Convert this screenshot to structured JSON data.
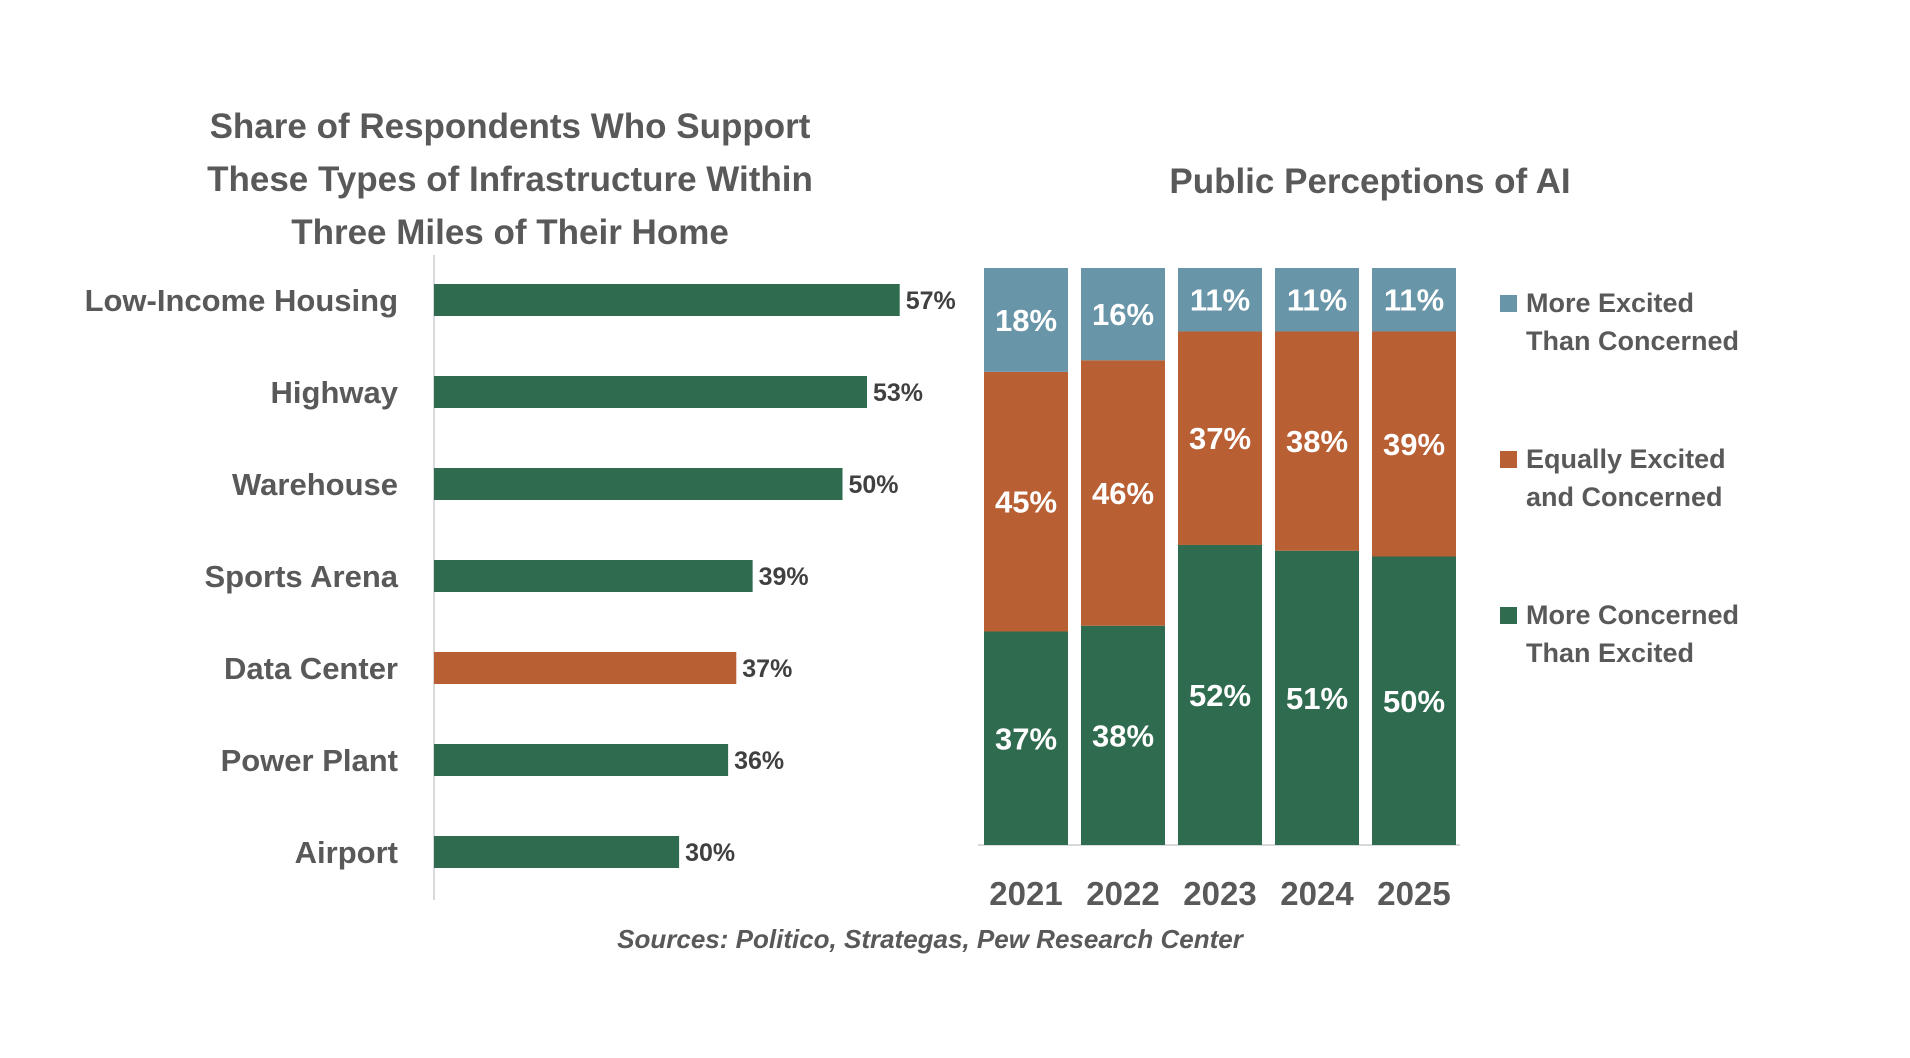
{
  "chart_data": [
    {
      "type": "bar",
      "orientation": "horizontal",
      "title": [
        "Share of Respondents Who Support",
        "These Types of Infrastructure Within",
        "Three Miles of Their Home"
      ],
      "categories": [
        "Low-Income Housing",
        "Highway",
        "Warehouse",
        "Sports Arena",
        "Data Center",
        "Power Plant",
        "Airport"
      ],
      "values": [
        57,
        53,
        50,
        39,
        37,
        36,
        30
      ],
      "value_labels": [
        "57%",
        "53%",
        "50%",
        "39%",
        "37%",
        "36%",
        "30%"
      ],
      "highlight_category": "Data Center",
      "xlim": [
        0,
        60
      ],
      "grid": false,
      "colors": {
        "bar": "#2e6b4f",
        "highlight": "#b85f34"
      }
    },
    {
      "type": "bar",
      "stacked": true,
      "title": "Public Perceptions of AI",
      "categories": [
        "2021",
        "2022",
        "2023",
        "2024",
        "2025"
      ],
      "series": [
        {
          "name": "More Concerned Than Excited",
          "legend_lines": [
            "More Concerned",
            "Than Excited"
          ],
          "color": "#2e6b4f",
          "values": [
            37,
            38,
            52,
            51,
            50
          ],
          "labels": [
            "37%",
            "38%",
            "52%",
            "51%",
            "50%"
          ]
        },
        {
          "name": "Equally Excited and Concerned",
          "legend_lines": [
            "Equally Excited",
            "and Concerned"
          ],
          "color": "#b85f34",
          "values": [
            45,
            46,
            37,
            38,
            39
          ],
          "labels": [
            "45%",
            "46%",
            "37%",
            "38%",
            "39%"
          ]
        },
        {
          "name": "More Excited Than Concerned",
          "legend_lines": [
            "More Excited",
            "Than Concerned"
          ],
          "color": "#6895a8",
          "values": [
            18,
            16,
            11,
            11,
            11
          ],
          "labels": [
            "18%",
            "16%",
            "11%",
            "11%",
            "11%"
          ]
        }
      ],
      "ylim": [
        0,
        100
      ],
      "grid": false,
      "legend_position": "right"
    }
  ],
  "source": "Sources: Politico, Strategas, Pew Research Center"
}
